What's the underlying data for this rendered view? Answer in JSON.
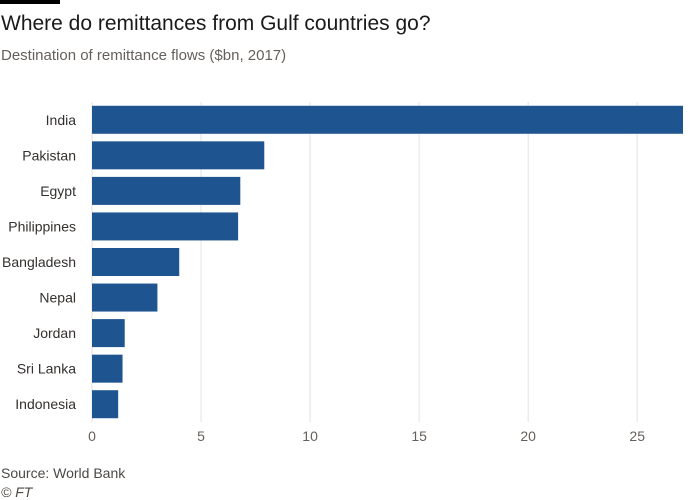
{
  "chart_data": {
    "type": "bar",
    "orientation": "horizontal",
    "title": "Where do remittances from Gulf countries go?",
    "subtitle": "Destination of remittance flows ($bn, 2017)",
    "categories": [
      "India",
      "Pakistan",
      "Egypt",
      "Philippines",
      "Bangladesh",
      "Nepal",
      "Jordan",
      "Sri Lanka",
      "Indonesia"
    ],
    "values": [
      27.1,
      7.9,
      6.8,
      6.7,
      4.0,
      3.0,
      1.5,
      1.4,
      1.2
    ],
    "xlabel": "",
    "ylabel": "",
    "xlim": [
      0,
      27.1
    ],
    "xticks": [
      0,
      5,
      10,
      15,
      20,
      25
    ],
    "grid": true,
    "bar_color": "#1e5490"
  },
  "footer": {
    "source": "Source: World Bank",
    "credit": "© FT"
  }
}
